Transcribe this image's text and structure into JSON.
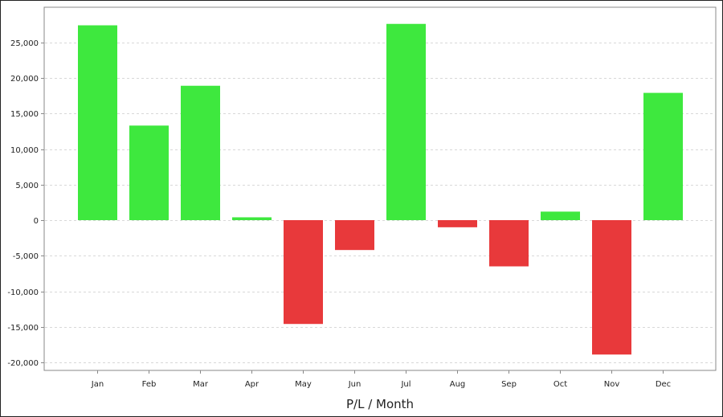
{
  "colors": {
    "positive": "#3ee83e",
    "negative": "#e8393b",
    "grid": "#d8d8d8",
    "axis": "#888888",
    "text": "#222222"
  },
  "chart_data": {
    "type": "bar",
    "title": "",
    "xlabel": "P/L / Month",
    "ylabel": "",
    "categories": [
      "Jan",
      "Feb",
      "Mar",
      "Apr",
      "May",
      "Jun",
      "Jul",
      "Aug",
      "Sep",
      "Oct",
      "Nov",
      "Dec"
    ],
    "values": [
      27400,
      13300,
      18900,
      400,
      -14600,
      -4200,
      27600,
      -1000,
      -6500,
      1200,
      -18900,
      17900
    ],
    "ylim": [
      -21000,
      30000
    ],
    "yticks": [
      -20000,
      -15000,
      -10000,
      -5000,
      0,
      5000,
      10000,
      15000,
      20000,
      25000
    ],
    "ytick_labels": [
      "-20,000",
      "-15,000",
      "-10,000",
      "-5,000",
      "0",
      "5,000",
      "10,000",
      "15,000",
      "20,000",
      "25,000"
    ],
    "grid": true,
    "legend": "none"
  }
}
